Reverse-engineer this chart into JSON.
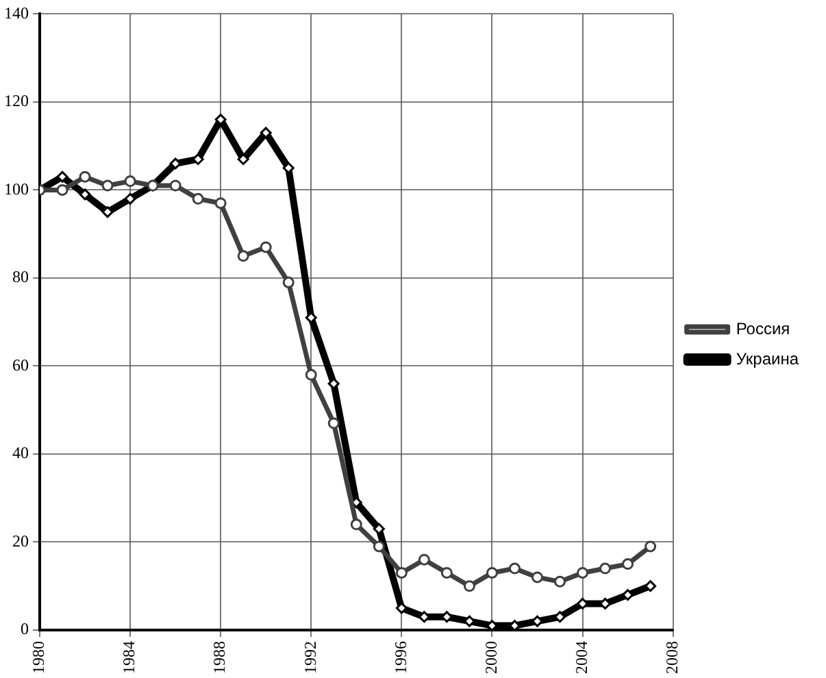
{
  "chart_data": {
    "type": "line",
    "x": [
      1980,
      1981,
      1982,
      1983,
      1984,
      1985,
      1986,
      1987,
      1988,
      1989,
      1990,
      1991,
      1992,
      1993,
      1994,
      1995,
      1996,
      1997,
      1998,
      1999,
      2000,
      2001,
      2002,
      2003,
      2004,
      2005,
      2006,
      2007
    ],
    "series": [
      {
        "name": "Россия",
        "color": "#404040",
        "marker": "circle",
        "values": [
          100,
          100,
          103,
          101,
          102,
          101,
          101,
          98,
          97,
          85,
          87,
          79,
          58,
          47,
          24,
          19,
          13,
          16,
          13,
          10,
          13,
          14,
          12,
          11,
          13,
          14,
          15,
          19
        ]
      },
      {
        "name": "Украина",
        "color": "#000000",
        "marker": "diamond",
        "values": [
          100,
          103,
          99,
          95,
          98,
          101,
          106,
          107,
          116,
          107,
          113,
          105,
          71,
          56,
          29,
          23,
          5,
          3,
          3,
          2,
          1,
          1,
          2,
          3,
          6,
          6,
          8,
          10
        ]
      }
    ],
    "xlim": [
      1980,
      2008
    ],
    "xticks": [
      1980,
      1984,
      1988,
      1992,
      1996,
      2000,
      2004,
      2008
    ],
    "ylim": [
      0,
      140
    ],
    "yticks": [
      0,
      20,
      40,
      60,
      80,
      100,
      120,
      140
    ],
    "grid": true,
    "legend": "right",
    "line_style": "solid"
  }
}
